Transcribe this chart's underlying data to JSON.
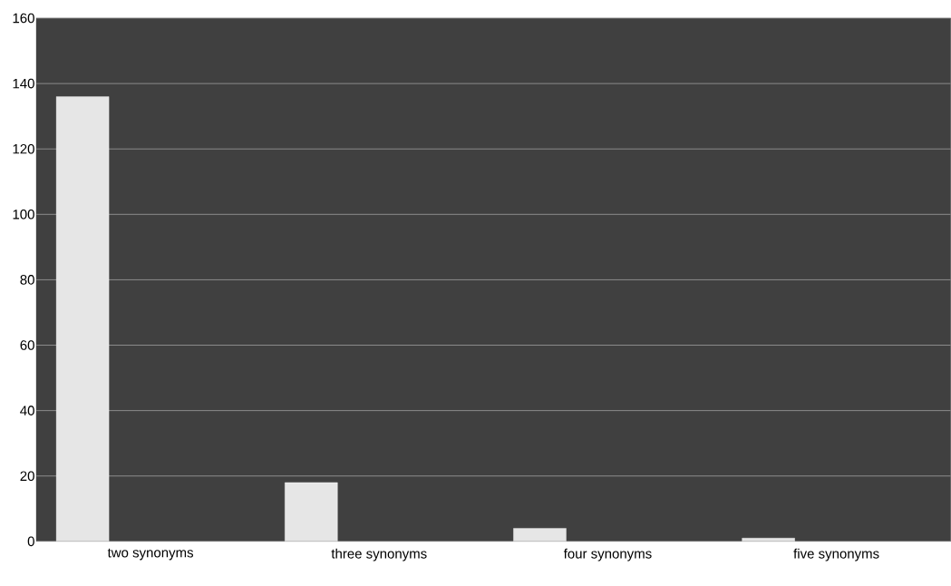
{
  "chart_data": {
    "type": "bar",
    "categories": [
      "two synonyms",
      "three synonyms",
      "four synonyms",
      "five synonyms"
    ],
    "values": [
      136,
      18,
      4,
      1
    ],
    "color": "#e6e6e6",
    "ylim": [
      0,
      160
    ],
    "yticks": [
      0,
      20,
      40,
      60,
      80,
      100,
      120,
      140,
      160
    ],
    "grid": "y"
  }
}
